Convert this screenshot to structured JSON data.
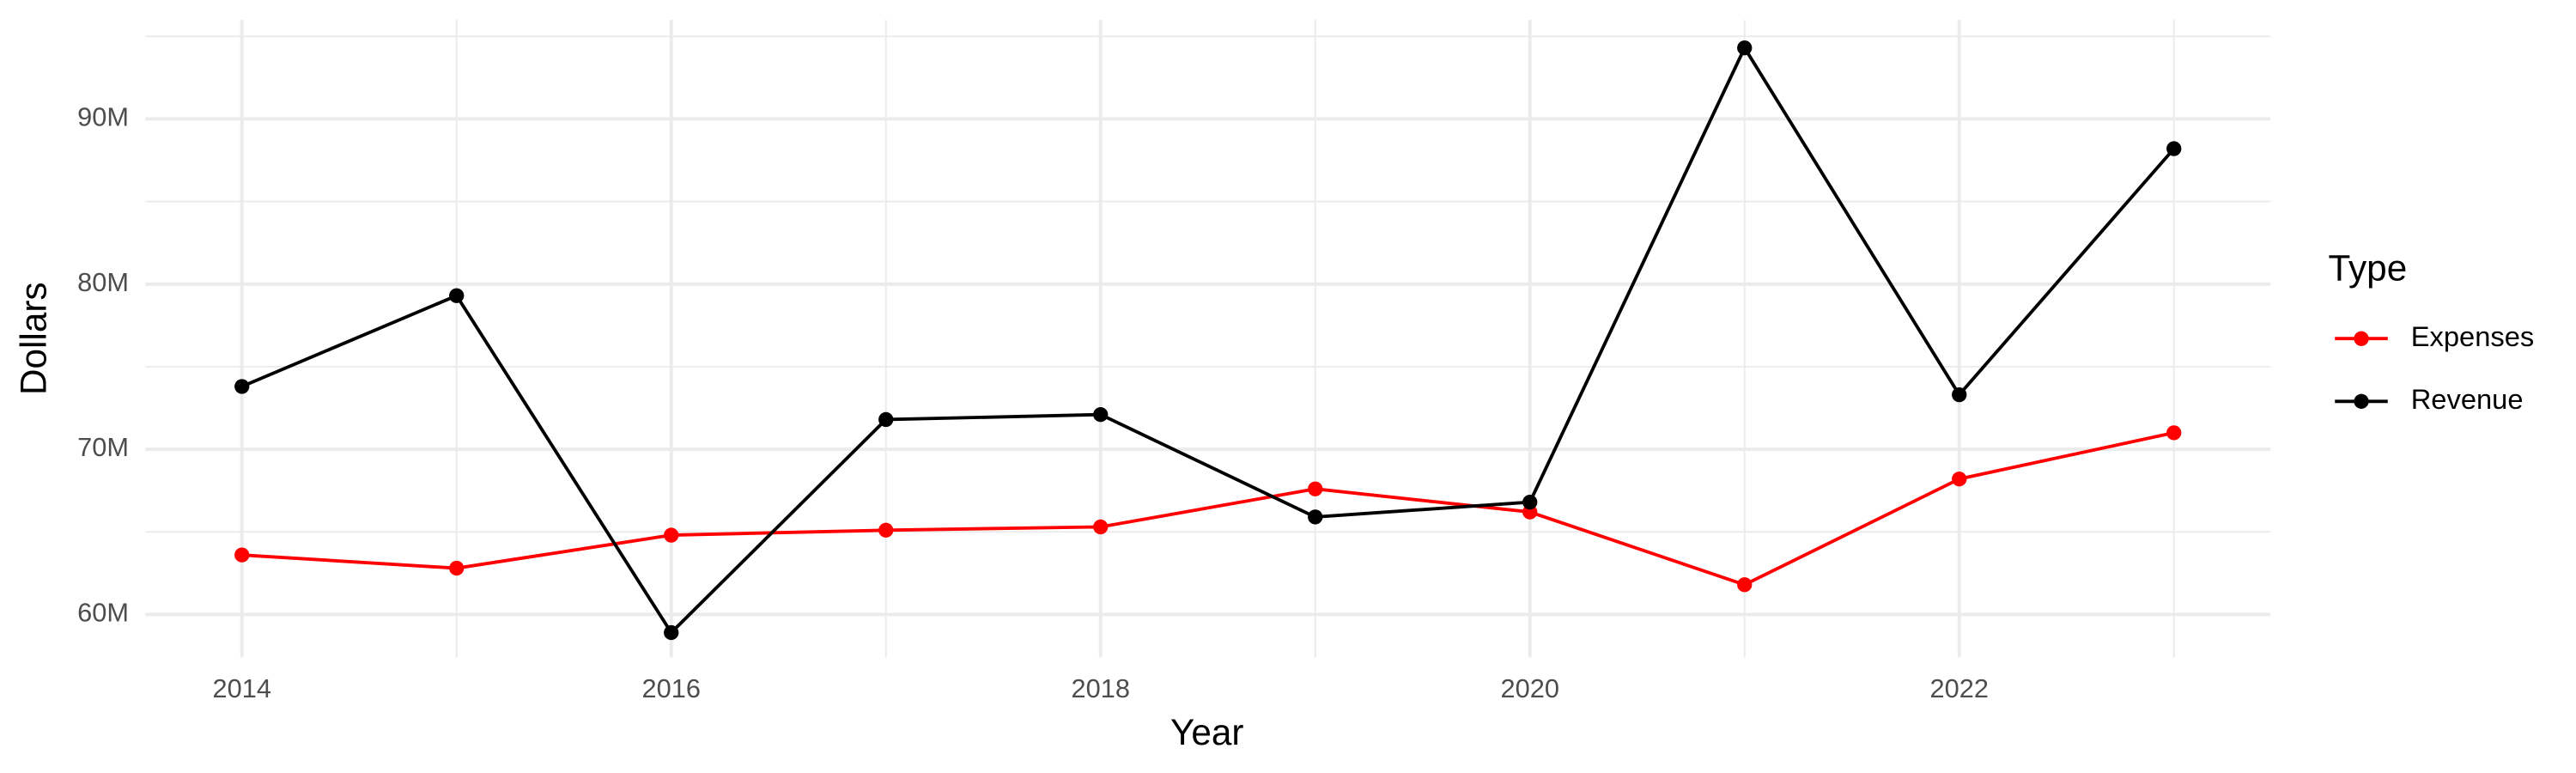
{
  "chart_data": {
    "type": "line",
    "x_label": "Year",
    "y_label": "Dollars",
    "legend_title": "Type",
    "legend_position": "right",
    "grid": true,
    "x": [
      2014,
      2015,
      2016,
      2017,
      2018,
      2019,
      2020,
      2021,
      2022,
      2023
    ],
    "series": [
      {
        "name": "Expenses",
        "color": "#ff0000",
        "values": [
          63600000,
          62800000,
          64800000,
          65100000,
          65300000,
          67600000,
          66200000,
          61800000,
          68200000,
          71000000
        ]
      },
      {
        "name": "Revenue",
        "color": "#000000",
        "values": [
          73800000,
          79300000,
          58900000,
          71800000,
          72100000,
          65900000,
          66800000,
          94300000,
          73300000,
          88200000
        ]
      }
    ],
    "xlim": [
      2013.55,
      2023.45
    ],
    "xticks": [
      2014,
      2016,
      2018,
      2020,
      2022
    ],
    "ylim": [
      57400000,
      96000000
    ],
    "yticks": [
      {
        "value": 60000000,
        "label": "60M"
      },
      {
        "value": 70000000,
        "label": "70M"
      },
      {
        "value": 80000000,
        "label": "80M"
      },
      {
        "value": 90000000,
        "label": "90M"
      }
    ]
  }
}
